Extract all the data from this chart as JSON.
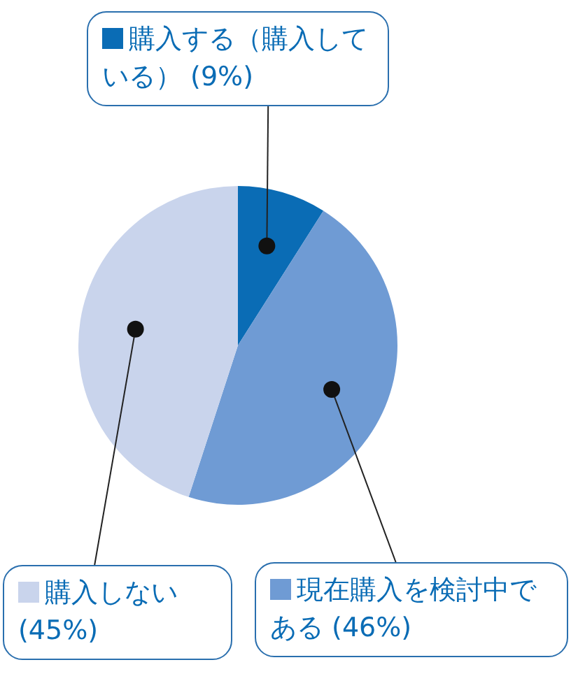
{
  "chart_data": {
    "type": "pie",
    "categories": [
      "購入する（購入している）",
      "現在購入を検討中である",
      "購入しない"
    ],
    "values": [
      9,
      46,
      45
    ],
    "colors": [
      "#0a6cb5",
      "#6f9bd4",
      "#c9d4ec"
    ],
    "value_labels": [
      "(9%)",
      "(46%)",
      "(45%)"
    ],
    "legend": "top"
  }
}
